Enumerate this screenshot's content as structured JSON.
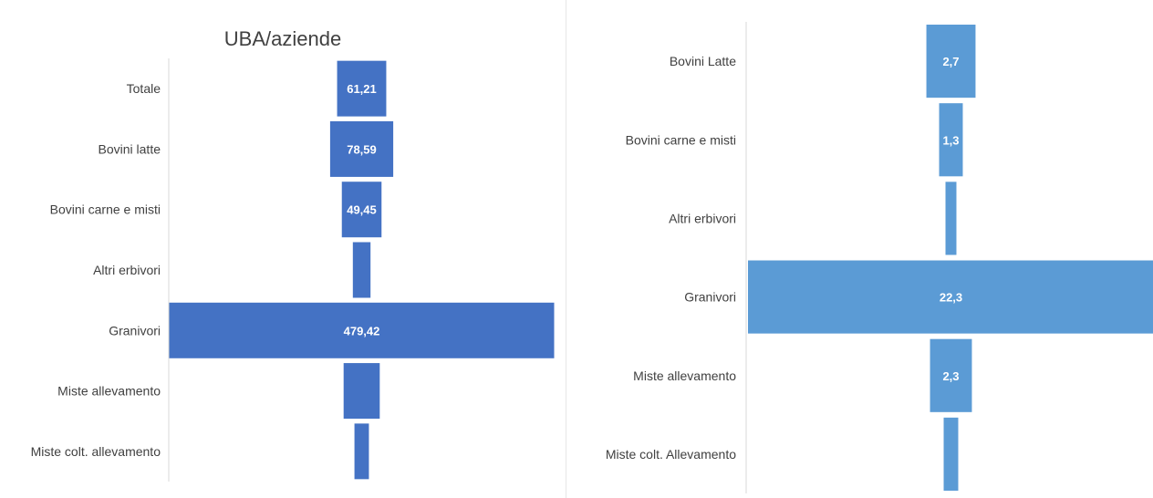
{
  "chart_data": [
    {
      "type": "bar",
      "subtype": "funnel",
      "title": "UBA/aziende",
      "categories": [
        "Totale",
        "Bovini latte",
        "Bovini carne e misti",
        "Altri erbivori",
        "Granivori",
        "Miste allevamento",
        "Miste colt. allevamento"
      ],
      "values": [
        61.21,
        78.59,
        49.45,
        22,
        479.42,
        45,
        18
      ],
      "data_labels": [
        "61,21",
        "78,59",
        "49,45",
        "",
        "479,42",
        "",
        ""
      ],
      "color": "#4472C4",
      "legend": "none"
    },
    {
      "type": "bar",
      "subtype": "funnel",
      "title": "",
      "categories": [
        "Bovini Latte",
        "Bovini carne e misti",
        "Altri erbivori",
        "Granivori",
        "Miste allevamento",
        "Miste colt. Allevamento"
      ],
      "values": [
        2.7,
        1.3,
        0.6,
        22.3,
        2.3,
        0.8
      ],
      "data_labels": [
        "2,7",
        "1,3",
        "",
        "22,3",
        "2,3",
        ""
      ],
      "color": "#5B9BD5",
      "legend": "none"
    }
  ]
}
